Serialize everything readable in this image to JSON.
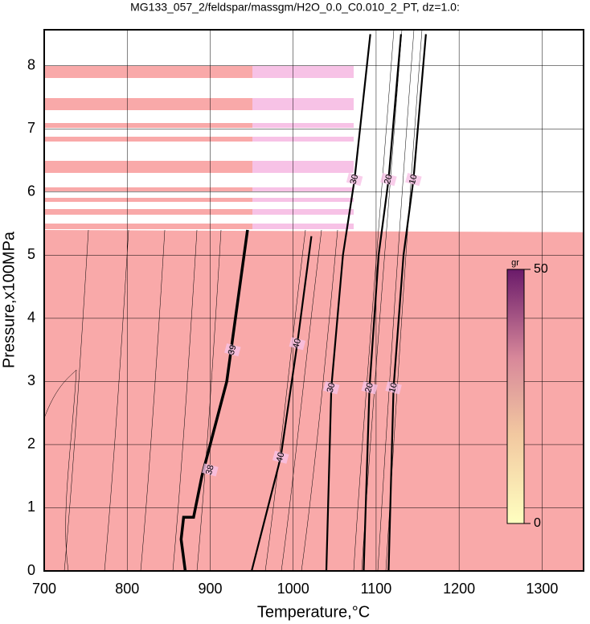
{
  "chart_data": {
    "type": "contour",
    "title": "MG133_057_2/feldspar/massgm/H2O_0.0_C0.010_2_PT, dz=1.0:",
    "x_label": "Temperature,°C",
    "y_label": "Pressure,x100MPa",
    "xlim": [
      700,
      1350
    ],
    "ylim": [
      0,
      8.57
    ],
    "xticks": [
      700,
      800,
      900,
      1000,
      1100,
      1200,
      1300
    ],
    "yticks": [
      0,
      1,
      2,
      3,
      4,
      5,
      6,
      7,
      8
    ],
    "grid": true,
    "contours": [
      {
        "level": 40,
        "x": [
          950,
          985,
          1005,
          1022
        ],
        "y": [
          0,
          1.8,
          3.6,
          5.3
        ]
      },
      {
        "level": 30,
        "x": [
          1040,
          1046,
          1060,
          1074,
          1093
        ],
        "y": [
          0,
          2.9,
          5.0,
          6.2,
          8.5
        ]
      },
      {
        "level": 20,
        "x": [
          1085,
          1092,
          1103,
          1115,
          1130
        ],
        "y": [
          0,
          2.9,
          5.0,
          6.2,
          8.5
        ]
      },
      {
        "level": 10,
        "x": [
          1115,
          1121,
          1133,
          1145,
          1160
        ],
        "y": [
          0,
          2.9,
          5.0,
          6.2,
          8.5
        ]
      }
    ],
    "boundary": {
      "x": [
        870,
        865,
        868,
        880,
        890,
        920,
        945
      ],
      "y": [
        0,
        0.5,
        0.85,
        0.85,
        1.5,
        3.0,
        5.4
      ]
    },
    "contour_labels": [
      {
        "text": "40",
        "x": 985,
        "y": 1.8
      },
      {
        "text": "40",
        "x": 1005,
        "y": 3.6
      },
      {
        "text": "30",
        "x": 1046,
        "y": 2.9
      },
      {
        "text": "30",
        "x": 1074,
        "y": 6.2
      },
      {
        "text": "20",
        "x": 1092,
        "y": 2.9
      },
      {
        "text": "20",
        "x": 1115,
        "y": 6.2
      },
      {
        "text": "10",
        "x": 1121,
        "y": 2.9
      },
      {
        "text": "10",
        "x": 1145,
        "y": 6.2
      },
      {
        "text": "39",
        "x": 927,
        "y": 3.5
      },
      {
        "text": "38",
        "x": 900,
        "y": 1.6
      }
    ],
    "colorbar": {
      "label": "gr",
      "lim": [
        0,
        50
      ],
      "ticks": [
        0,
        50
      ]
    }
  }
}
